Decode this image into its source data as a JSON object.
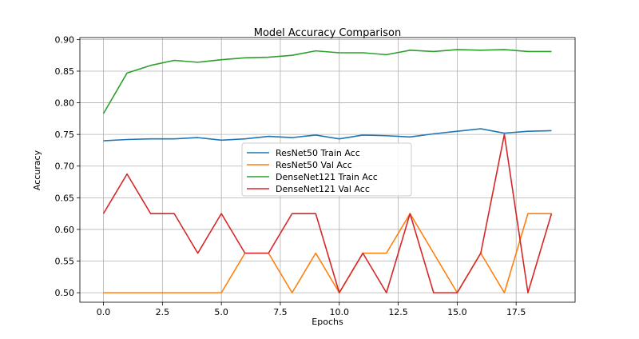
{
  "chart_data": {
    "type": "line",
    "title": "Model Accuracy Comparison",
    "xlabel": "Epochs",
    "ylabel": "Accuracy",
    "xlim": [
      -1,
      20
    ],
    "ylim": [
      0.485,
      0.903
    ],
    "grid": true,
    "legend_position": "center",
    "x": [
      0,
      1,
      2,
      3,
      4,
      5,
      6,
      7,
      8,
      9,
      10,
      11,
      12,
      13,
      14,
      15,
      16,
      17,
      18,
      19
    ],
    "x_ticks": [
      {
        "value": 0.0,
        "label": "0.0"
      },
      {
        "value": 2.5,
        "label": "2.5"
      },
      {
        "value": 5.0,
        "label": "5.0"
      },
      {
        "value": 7.5,
        "label": "7.5"
      },
      {
        "value": 10.0,
        "label": "10.0"
      },
      {
        "value": 12.5,
        "label": "12.5"
      },
      {
        "value": 15.0,
        "label": "15.0"
      },
      {
        "value": 17.5,
        "label": "17.5"
      }
    ],
    "y_ticks": [
      {
        "value": 0.5,
        "label": "0.50"
      },
      {
        "value": 0.55,
        "label": "0.55"
      },
      {
        "value": 0.6,
        "label": "0.60"
      },
      {
        "value": 0.65,
        "label": "0.65"
      },
      {
        "value": 0.7,
        "label": "0.70"
      },
      {
        "value": 0.75,
        "label": "0.75"
      },
      {
        "value": 0.8,
        "label": "0.80"
      },
      {
        "value": 0.85,
        "label": "0.85"
      },
      {
        "value": 0.9,
        "label": "0.90"
      }
    ],
    "series": [
      {
        "name": "ResNet50 Train Acc",
        "color": "#1f77b4",
        "values": [
          0.74,
          0.742,
          0.743,
          0.743,
          0.745,
          0.741,
          0.743,
          0.747,
          0.745,
          0.749,
          0.743,
          0.749,
          0.748,
          0.746,
          0.751,
          0.755,
          0.759,
          0.752,
          0.755,
          0.756
        ]
      },
      {
        "name": "ResNet50 Val Acc",
        "color": "#ff7f0e",
        "values": [
          0.5,
          0.5,
          0.5,
          0.5,
          0.5,
          0.5,
          0.5625,
          0.5625,
          0.5,
          0.5625,
          0.5,
          0.5625,
          0.5625,
          0.625,
          0.5625,
          0.5,
          0.5625,
          0.5,
          0.625,
          0.625
        ]
      },
      {
        "name": "DenseNet121 Train Acc",
        "color": "#2ca02c",
        "values": [
          0.783,
          0.847,
          0.859,
          0.867,
          0.864,
          0.868,
          0.871,
          0.872,
          0.875,
          0.882,
          0.879,
          0.879,
          0.876,
          0.883,
          0.881,
          0.884,
          0.883,
          0.884,
          0.881,
          0.881
        ]
      },
      {
        "name": "DenseNet121 Val Acc",
        "color": "#d62728",
        "values": [
          0.625,
          0.6875,
          0.625,
          0.625,
          0.5625,
          0.625,
          0.5625,
          0.5625,
          0.625,
          0.625,
          0.5,
          0.5625,
          0.5,
          0.625,
          0.5,
          0.5,
          0.5625,
          0.75,
          0.5,
          0.625
        ]
      }
    ]
  }
}
